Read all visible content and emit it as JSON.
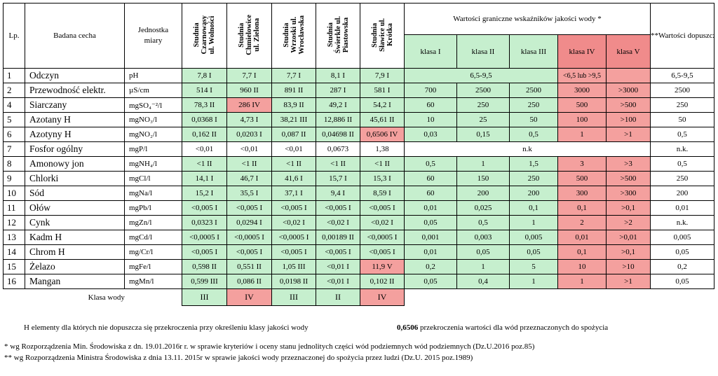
{
  "headers": {
    "lp": "Lp.",
    "cecha": "Badana cecha",
    "jednostka": "Jednostka\nmiary",
    "stations": [
      "Studnia\nCzarnowąsy\nul. Wolności",
      "Studnia\nChmielowice\nul. Zielona",
      "Studnia\nWrzoski ul.\nWrocławska",
      "Studnia\nŚwierkle ul.\nPiastowska",
      "Studnia\nSławice ul.\nKrótka"
    ],
    "wartosci": "Wartości graniczne wskaźników jakości wody *",
    "classes": [
      "klasa I",
      "klasa II",
      "klasa III",
      "klasa IV",
      "klasa V"
    ],
    "dopuszczalne": "**Wartości\ndopuszczalne dla\nwód\nprzeznaczonych\ndo spożycia"
  },
  "rows": [
    {
      "lp": "1",
      "cecha": "Odczyn",
      "unit": "pH",
      "v": [
        "7,8   I",
        "7,7   I",
        "7,7   I",
        "8,1   I",
        "7,9   I"
      ],
      "vc": [
        "g",
        "g",
        "g",
        "g",
        "g"
      ],
      "merged": "6,5-9,5",
      "mergedIV": "<6,5 lub >9,5",
      "dop": "6,5-9,5"
    },
    {
      "lp": "2",
      "cecha": "Przewodność elektr.",
      "unit": "µS/cm",
      "v": [
        "514  I",
        "960 II",
        "891 II",
        "287  I",
        "581  I"
      ],
      "vc": [
        "g",
        "g",
        "g",
        "g",
        "g"
      ],
      "k": [
        "700",
        "2500",
        "2500",
        "3000",
        ">3000"
      ],
      "dop": "2500"
    },
    {
      "lp": "4",
      "cecha": "Siarczany",
      "unit": "mgSO₄⁻²/l",
      "v": [
        "78,3 II",
        "286 IV",
        "83,9 II",
        "49,2 I",
        "54,2 I"
      ],
      "vc": [
        "g",
        "r",
        "g",
        "g",
        "g"
      ],
      "k": [
        "60",
        "250",
        "250",
        "500",
        ">500"
      ],
      "dop": "250"
    },
    {
      "lp": "5",
      "cecha": "Azotany H",
      "unit": "mgNO₃/l",
      "v": [
        "0,0368 I",
        "4,73 I",
        "38,21 III",
        "12,886 II",
        "45,61 II"
      ],
      "vc": [
        "g",
        "g",
        "g",
        "g",
        "g"
      ],
      "k": [
        "10",
        "25",
        "50",
        "100",
        ">100"
      ],
      "dop": "50"
    },
    {
      "lp": "6",
      "cecha": "Azotyny H",
      "unit": "mgNO₂/l",
      "v": [
        "0,162 II",
        "0,0203 I",
        "0,087 II",
        "0,04698 II",
        "0,6506 IV"
      ],
      "vc": [
        "g",
        "g",
        "g",
        "g",
        "r"
      ],
      "vb": [
        false,
        false,
        false,
        false,
        true
      ],
      "k": [
        "0,03",
        "0,15",
        "0,5",
        "1",
        ">1"
      ],
      "dop": "0,5"
    },
    {
      "lp": "7",
      "cecha": "Fosfor ogólny",
      "unit": "mgP/l",
      "v": [
        "<0,01",
        "<0,01",
        "<0,01",
        "0,0673",
        "1,38"
      ],
      "vc": [
        "",
        "",
        "",
        "",
        ""
      ],
      "nk": "n.k",
      "dop": "n.k."
    },
    {
      "lp": "8",
      "cecha": "Amonowy jon",
      "unit": "mgNH₄/l",
      "v": [
        "<1 II",
        "<1 II",
        "<1 II",
        "<1 II",
        "<1 II"
      ],
      "vc": [
        "g",
        "g",
        "g",
        "g",
        "g"
      ],
      "k": [
        "0,5",
        "1",
        "1,5",
        "3",
        ">3"
      ],
      "dop": "0,5"
    },
    {
      "lp": "9",
      "cecha": "Chlorki",
      "unit": "mgCl/l",
      "v": [
        "14,1  I",
        "46,7  I",
        "41,6 I",
        "15,7 I",
        "15,3 I"
      ],
      "vc": [
        "g",
        "g",
        "g",
        "g",
        "g"
      ],
      "k": [
        "60",
        "150",
        "250",
        "500",
        ">500"
      ],
      "dop": "250"
    },
    {
      "lp": "10",
      "cecha": "Sód",
      "unit": "mgNa/l",
      "v": [
        "15,2 I",
        "35,5 I",
        "37,1 I",
        "9,4 I",
        "8,59 I"
      ],
      "vc": [
        "g",
        "g",
        "g",
        "g",
        "g"
      ],
      "k": [
        "60",
        "200",
        "200",
        "300",
        ">300"
      ],
      "dop": "200"
    },
    {
      "lp": "11",
      "cecha": "Ołów",
      "unit": "mgPb/l",
      "v": [
        "<0,005 I",
        "<0,005 I",
        "<0,005 I",
        "<0,005 I",
        "<0,005 I"
      ],
      "vc": [
        "g",
        "g",
        "g",
        "g",
        "g"
      ],
      "k": [
        "0,01",
        "0,025",
        "0,1",
        "0,1",
        ">0,1"
      ],
      "dop": "0,01"
    },
    {
      "lp": "12",
      "cecha": "Cynk",
      "unit": "mgZn/l",
      "v": [
        "0,0323 I",
        "0,0294 I",
        "<0,02 I",
        "<0,02 I",
        "<0,02 I"
      ],
      "vc": [
        "g",
        "g",
        "g",
        "g",
        "g"
      ],
      "k": [
        "0,05",
        "0,5",
        "1",
        "2",
        ">2"
      ],
      "dop": "n.k."
    },
    {
      "lp": "13",
      "cecha": "Kadm H",
      "unit": "mgCd/l",
      "v": [
        "<0,0005 I",
        "<0,0005 I",
        "<0,0005 I",
        "0,00189 II",
        "<0,0005 I"
      ],
      "vc": [
        "g",
        "g",
        "g",
        "g",
        "g"
      ],
      "k": [
        "0,001",
        "0,003",
        "0,005",
        "0,01",
        ">0,01"
      ],
      "dop": "0,005"
    },
    {
      "lp": "14",
      "cecha": "Chrom H",
      "unit": "mg/Cr/l",
      "v": [
        "<0,005 I",
        "<0,005 I",
        "<0,005 I",
        "<0,005 I",
        "<0,005 I"
      ],
      "vc": [
        "g",
        "g",
        "g",
        "g",
        "g"
      ],
      "k": [
        "0,01",
        "0,05",
        "0,05",
        "0,1",
        ">0,1"
      ],
      "dop": "0,05"
    },
    {
      "lp": "15",
      "cecha": "Żelazo",
      "unit": "mgFe/l",
      "v": [
        "0,598 II",
        "0,551 II",
        "1,05 III",
        "<0,01 I",
        "11,9 V"
      ],
      "vc": [
        "g",
        "g",
        "g",
        "g",
        "r"
      ],
      "vb": [
        true,
        true,
        true,
        false,
        false
      ],
      "k": [
        "0,2",
        "1",
        "5",
        "10",
        ">10"
      ],
      "dop": "0,2"
    },
    {
      "lp": "16",
      "cecha": "Mangan",
      "unit": "mgMn/l",
      "v": [
        "0,599 III",
        "0,086 II",
        "0,0198 II",
        "<0,01 I",
        "0,102 II"
      ],
      "vc": [
        "g",
        "g",
        "g",
        "g",
        "g"
      ],
      "vb": [
        true,
        true,
        false,
        false,
        true
      ],
      "k": [
        "0,05",
        "0,4",
        "1",
        "1",
        ">1"
      ],
      "dop": "0,05"
    }
  ],
  "klasa_wody": {
    "label": "Klasa wody",
    "values": [
      "III",
      "IV",
      "III",
      "II",
      "IV"
    ],
    "colors": [
      "g",
      "r",
      "g",
      "g",
      "r"
    ]
  },
  "notes": {
    "legend_h": "H  elementy dla których nie dopuszcza się przekroczenia przy określeniu klasy jakości wody",
    "legend_bold_value": "0,6506",
    "legend_bold_text": "  przekroczenia wartości dla wód przeznaczonych do spożycia",
    "footnote1": "* wg Rozporządzenia Min. Środowiska z dn. 19.01.2016r r. w sprawie kryteriów i oceny stanu jednolitych części wód podziemnych  wód podziemnych  (Dz.U.2016 poz.85)",
    "footnote2": "** wg Rozporządzenia Ministra Środowiska z dnia 13.11. 2015r w sprawie jakości wody przeznaczonej do spożycia przez ludzi (Dz.U. 2015 poz.1989)"
  },
  "colors": {
    "green": "#c6efce",
    "red": "#f4a09e",
    "class_red": "#f08b8b"
  }
}
